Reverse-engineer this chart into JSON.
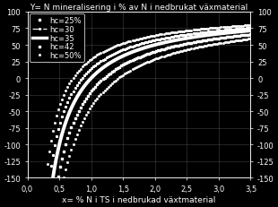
{
  "title": "Y= N mineralisering i % av N i nedbrukat växmaterial",
  "xlabel": "x= % N i TS i nedbrukad växtmaterial",
  "xlim": [
    0.0,
    3.5
  ],
  "ylim": [
    -150,
    100
  ],
  "xticks": [
    0.0,
    0.5,
    1.0,
    1.5,
    2.0,
    2.5,
    3.0,
    3.5
  ],
  "yticks": [
    -150,
    -125,
    -100,
    -75,
    -50,
    -25,
    0,
    25,
    50,
    75,
    100
  ],
  "background_color": "#000000",
  "text_color": "#ffffff",
  "grid_color": "#808080",
  "hc_values": [
    25,
    30,
    35,
    42,
    50
  ],
  "hc_styles": [
    ":",
    "-.",
    "-",
    ":",
    ":"
  ],
  "hc_widths": [
    0.8,
    0.8,
    2.5,
    0.8,
    0.8
  ],
  "hc_markersize": [
    1.5,
    1.5,
    0,
    2.0,
    1.5
  ],
  "legend_labels": [
    "hc=25%",
    "hc=30",
    "hc=35",
    "hc=42",
    "hc=50%"
  ],
  "title_fontsize": 6.5,
  "label_fontsize": 6.5,
  "tick_fontsize": 6,
  "legend_fontsize": 6,
  "cn_humus": 10.0,
  "alpha": 0.5
}
